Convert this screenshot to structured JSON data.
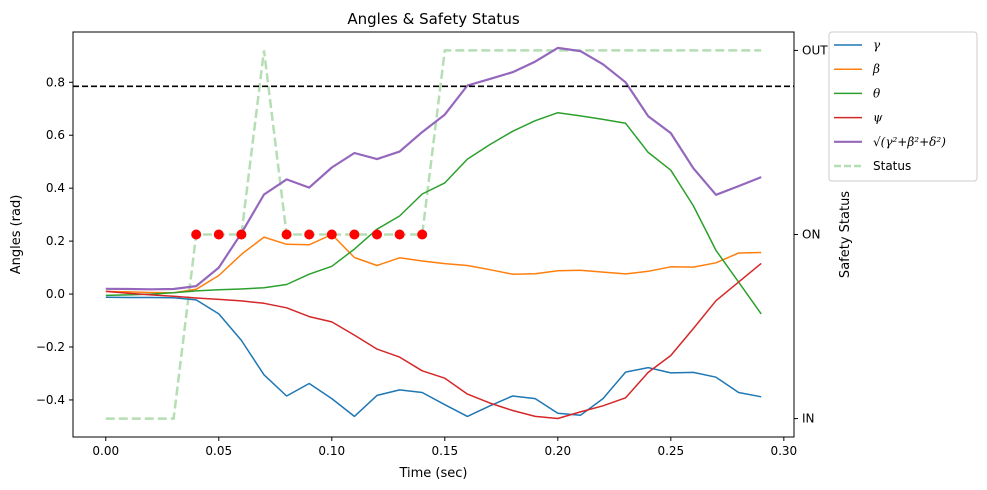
{
  "chart_data": {
    "type": "line",
    "title": "Angles & Safety Status",
    "xlabel": "Time (sec)",
    "ylabel": "Angles (rad)",
    "y2label": "Safety Status",
    "xlim": [
      -0.0145,
      0.3045
    ],
    "ylim": [
      -0.54,
      0.99
    ],
    "xticks": [
      0.0,
      0.05,
      0.1,
      0.15,
      0.2,
      0.25,
      0.3
    ],
    "xtick_labels": [
      "0.00",
      "0.05",
      "0.10",
      "0.15",
      "0.20",
      "0.25",
      "0.30"
    ],
    "yticks": [
      -0.4,
      -0.2,
      0.0,
      0.2,
      0.4,
      0.6,
      0.8
    ],
    "ytick_labels": [
      "−0.4",
      "−0.2",
      "0.0",
      "0.2",
      "0.4",
      "0.6",
      "0.8"
    ],
    "y2_categories": [
      "IN",
      "ON",
      "OUT"
    ],
    "y2_values": [
      0,
      1,
      2
    ],
    "y2lim": [
      -0.1,
      2.1
    ],
    "threshold": 0.785,
    "grid": false,
    "legend_position": "outside-top-right",
    "x": [
      0.0,
      0.01,
      0.02,
      0.03,
      0.04,
      0.05,
      0.06,
      0.07,
      0.08,
      0.09,
      0.1,
      0.11,
      0.12,
      0.13,
      0.14,
      0.15,
      0.16,
      0.17,
      0.18,
      0.19,
      0.2,
      0.21,
      0.22,
      0.23,
      0.24,
      0.25,
      0.26,
      0.27,
      0.28,
      0.29
    ],
    "series": [
      {
        "name": "γ",
        "color": "#1f77b4",
        "width": 1.5,
        "values": [
          -0.012,
          -0.013,
          -0.013,
          -0.014,
          -0.022,
          -0.075,
          -0.175,
          -0.305,
          -0.385,
          -0.338,
          -0.395,
          -0.462,
          -0.383,
          -0.362,
          -0.372,
          -0.418,
          -0.462,
          -0.422,
          -0.385,
          -0.395,
          -0.45,
          -0.458,
          -0.395,
          -0.295,
          -0.278,
          -0.298,
          -0.296,
          -0.314,
          -0.372,
          -0.388
        ]
      },
      {
        "name": "β",
        "color": "#ff7f0e",
        "width": 1.5,
        "values": [
          0.01,
          0.008,
          0.006,
          0.005,
          0.018,
          0.07,
          0.15,
          0.215,
          0.188,
          0.186,
          0.225,
          0.138,
          0.108,
          0.137,
          0.125,
          0.115,
          0.108,
          0.092,
          0.075,
          0.077,
          0.088,
          0.09,
          0.083,
          0.076,
          0.086,
          0.103,
          0.102,
          0.118,
          0.155,
          0.157
        ]
      },
      {
        "name": "θ",
        "color": "#2ca02c",
        "width": 1.5,
        "values": [
          -0.005,
          -0.003,
          0.0,
          0.005,
          0.012,
          0.016,
          0.019,
          0.024,
          0.036,
          0.075,
          0.105,
          0.17,
          0.245,
          0.295,
          0.378,
          0.42,
          0.51,
          0.565,
          0.615,
          0.655,
          0.685,
          0.673,
          0.66,
          0.645,
          0.535,
          0.468,
          0.333,
          0.165,
          0.045,
          -0.075
        ]
      },
      {
        "name": "ψ",
        "color": "#d62728",
        "width": 1.5,
        "values": [
          0.01,
          0.003,
          -0.003,
          -0.008,
          -0.015,
          -0.02,
          -0.026,
          -0.035,
          -0.052,
          -0.085,
          -0.105,
          -0.155,
          -0.208,
          -0.238,
          -0.29,
          -0.318,
          -0.378,
          -0.412,
          -0.44,
          -0.462,
          -0.47,
          -0.445,
          -0.422,
          -0.392,
          -0.296,
          -0.232,
          -0.13,
          -0.025,
          0.045,
          0.116
        ]
      },
      {
        "name": "√(γ²+β²+δ²)",
        "color": "#9467bd",
        "width": 2.2,
        "values": [
          0.02,
          0.019,
          0.018,
          0.019,
          0.03,
          0.1,
          0.23,
          0.376,
          0.433,
          0.402,
          0.478,
          0.533,
          0.51,
          0.538,
          0.612,
          0.678,
          0.788,
          0.813,
          0.838,
          0.878,
          0.93,
          0.918,
          0.868,
          0.8,
          0.672,
          0.608,
          0.475,
          0.375,
          0.408,
          0.442
        ]
      }
    ],
    "status_series": {
      "name": "Status",
      "color": "#2ca02c",
      "opacity": 0.35,
      "values": [
        0,
        0,
        0,
        0,
        1,
        1,
        1,
        2,
        1,
        1,
        1,
        1,
        1,
        1,
        1,
        2,
        2,
        2,
        2,
        2,
        2,
        2,
        2,
        2,
        2,
        2,
        2,
        2,
        2,
        2
      ]
    },
    "markers": {
      "color": "#ff0000",
      "y": 0.225,
      "x": [
        0.04,
        0.05,
        0.06,
        0.08,
        0.09,
        0.1,
        0.11,
        0.12,
        0.13,
        0.14
      ]
    }
  }
}
